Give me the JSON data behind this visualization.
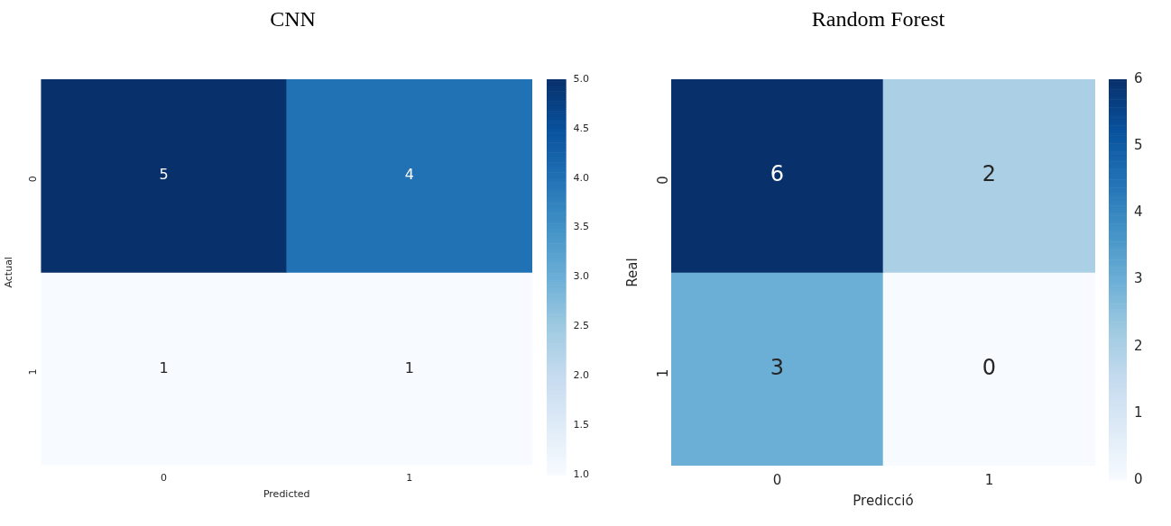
{
  "chart_data": [
    {
      "type": "heatmap",
      "title": "CNN",
      "xlabel": "Predicted",
      "ylabel": "Actual",
      "categories": [
        "0",
        "1"
      ],
      "y_categories": [
        "0",
        "1"
      ],
      "cells": [
        [
          5,
          4
        ],
        [
          1,
          1
        ]
      ],
      "clim": [
        1,
        5
      ],
      "cticks": [
        {
          "value": 1,
          "label": "1.0"
        },
        {
          "value": 1.5,
          "label": "1.5"
        },
        {
          "value": 2,
          "label": "2.0"
        },
        {
          "value": 2.5,
          "label": "2.5"
        },
        {
          "value": 3,
          "label": "3.0"
        },
        {
          "value": 3.5,
          "label": "3.5"
        },
        {
          "value": 4,
          "label": "4.0"
        },
        {
          "value": 4.5,
          "label": "4.5"
        },
        {
          "value": 5,
          "label": "5.0"
        }
      ],
      "data_labels": true
    },
    {
      "type": "heatmap",
      "title": "Random Forest",
      "xlabel": "Predicció",
      "ylabel": "Real",
      "categories": [
        "0",
        "1"
      ],
      "y_categories": [
        "0",
        "1"
      ],
      "cells": [
        [
          6,
          2
        ],
        [
          3,
          0
        ]
      ],
      "clim": [
        0,
        6
      ],
      "cticks": [
        0,
        1,
        2,
        3,
        4,
        5,
        6
      ],
      "data_labels": true
    }
  ]
}
